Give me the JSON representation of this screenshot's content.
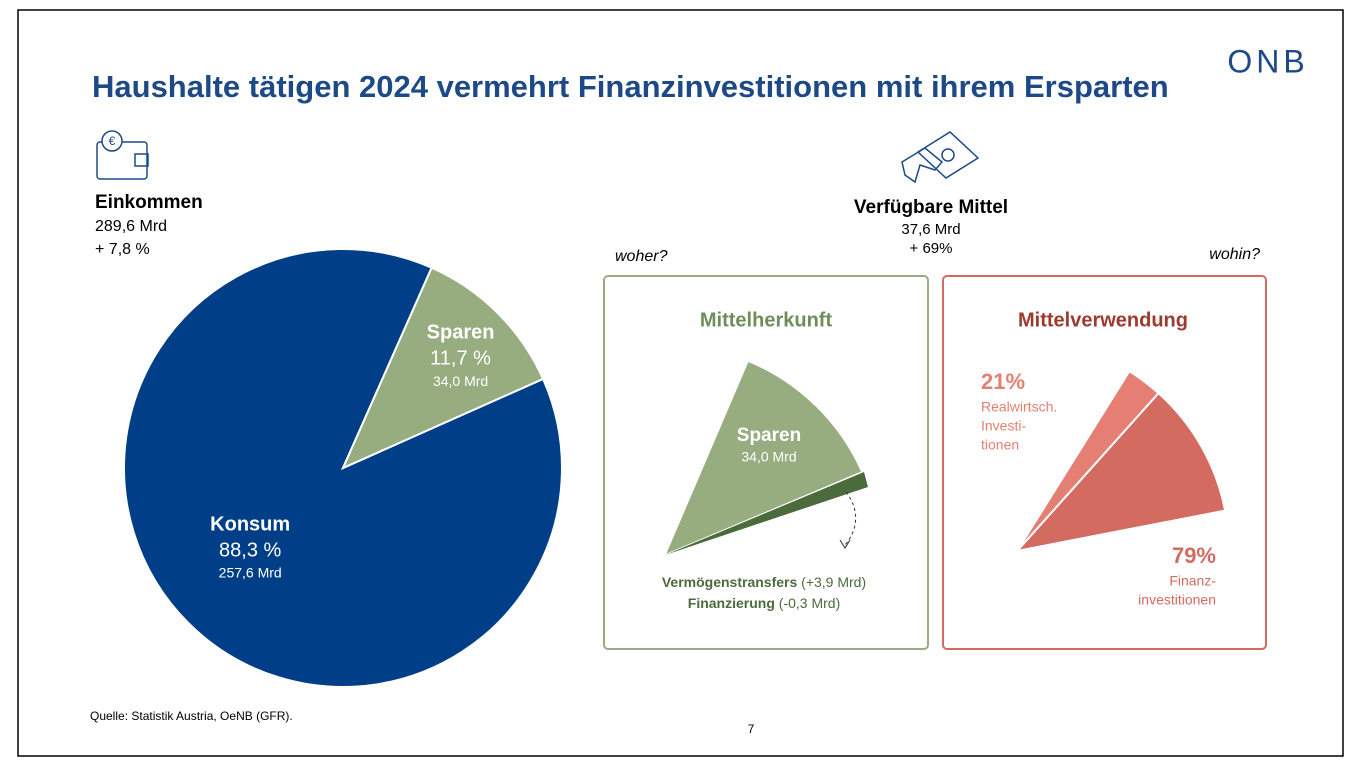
{
  "title": "Haushalte tätigen 2024 vermehrt Finanzinvestitionen mit ihrem Ersparten",
  "logo": "ONB",
  "income": {
    "label": "Einkommen",
    "amount": "289,6 Mrd",
    "change": "+ 7,8 %"
  },
  "available": {
    "label": "Verfügbare Mittel",
    "amount": "37,6 Mrd",
    "change": "+ 69%"
  },
  "from_question": "woher?",
  "to_question": "wohin?",
  "origin_panel": {
    "title": "Mittelherkunft",
    "sector_label": "Sparen",
    "sector_amount": "34,0 Mrd",
    "transfers": {
      "label": "Vermögenstransfers",
      "detail": "(+3,9 Mrd)"
    },
    "financing": {
      "label": "Finanzierung",
      "detail": "(-0,3 Mrd)"
    }
  },
  "source": "Quelle: Statistik Austria, OeNB (GFR).",
  "page_number": "7",
  "chart_data": [
    {
      "type": "pie",
      "categories": [
        "Konsum",
        "Sparen"
      ],
      "values": [
        88.3,
        11.7
      ],
      "value_labels": [
        "88,3 %",
        "11,7 %"
      ],
      "amount_labels": [
        "257,6 Mrd",
        "34,0 Mrd"
      ],
      "colors": [
        "#003f87",
        "#97ad80"
      ]
    },
    {
      "type": "fan",
      "title": "Mittelverwendung",
      "values": [
        79,
        21
      ],
      "value_labels": [
        "79%",
        "21%"
      ],
      "category_lines": [
        [
          "Finanz-",
          "investitionen"
        ],
        [
          "Realwirtsch.",
          "Investi-",
          "tionen"
        ]
      ],
      "colors": [
        "#d46b61",
        "#e57f73"
      ]
    }
  ]
}
